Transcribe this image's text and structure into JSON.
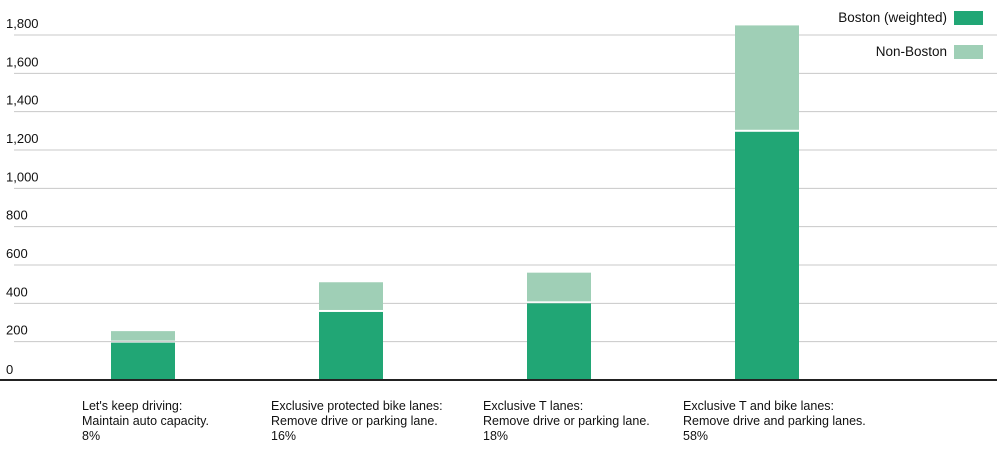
{
  "chart_data": {
    "type": "bar",
    "stacked": true,
    "categories": [
      [
        "Let's keep driving:",
        "Maintain auto capacity.",
        "8%"
      ],
      [
        "Exclusive protected bike lanes:",
        "Remove drive or parking lane.",
        "16%"
      ],
      [
        "Exclusive T lanes:",
        "Remove drive or parking lane.",
        "18%"
      ],
      [
        "Exclusive T and bike lanes:",
        "Remove drive and parking lanes.",
        "58%"
      ]
    ],
    "series": [
      {
        "name": "Boston (weighted)",
        "color": "#21a675",
        "values": [
          195,
          355,
          400,
          1295
        ]
      },
      {
        "name": "Non-Boston",
        "color": "#9fcfb6",
        "values": [
          60,
          155,
          160,
          555
        ]
      }
    ],
    "ylim": [
      0,
      1800
    ],
    "yticks": [
      0,
      200,
      400,
      600,
      800,
      1000,
      1200,
      1400,
      1600,
      1800
    ],
    "ytick_labels": [
      "0",
      "200",
      "400",
      "600",
      "800",
      "1,000",
      "1,200",
      "1,400",
      "1,600",
      "1,800"
    ],
    "grid": true,
    "legend_position": "top-right"
  }
}
